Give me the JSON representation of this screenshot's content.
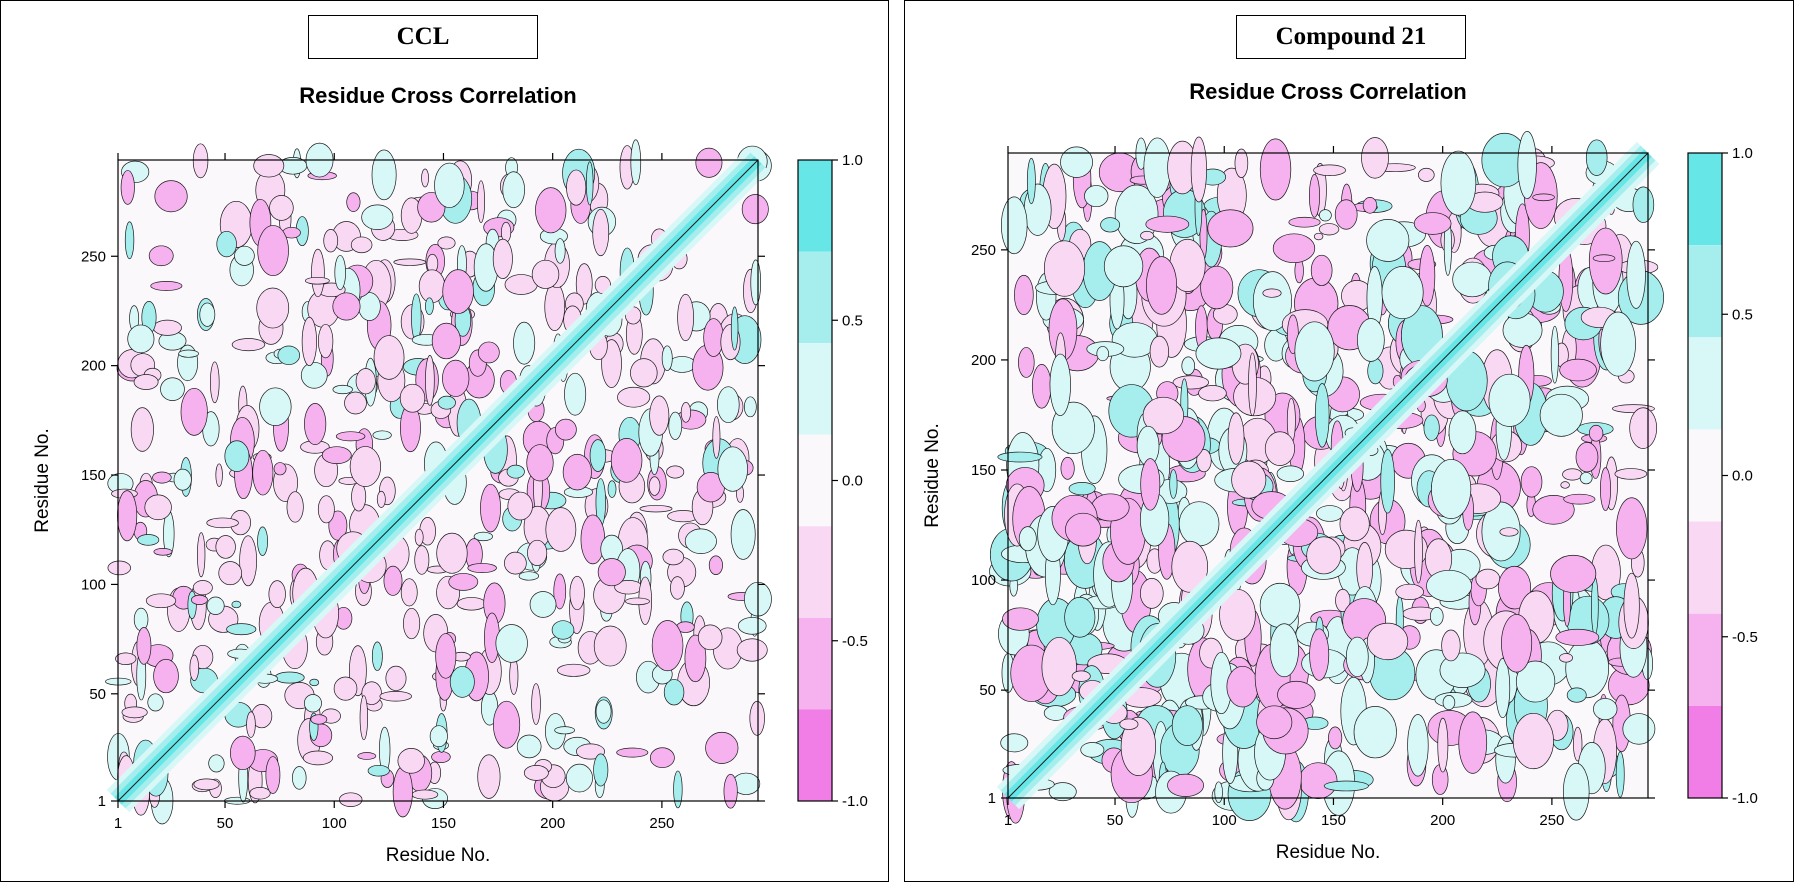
{
  "panels": [
    {
      "label": "CCL",
      "chart_data": {
        "type": "heatmap",
        "title": "Residue Cross Correlation",
        "xlabel": "Residue No.",
        "ylabel": "Residue No.",
        "xlim": [
          1,
          294
        ],
        "ylim": [
          1,
          294
        ],
        "xticks": [
          1,
          50,
          100,
          150,
          200,
          250
        ],
        "yticks": [
          1,
          50,
          100,
          150,
          200,
          250
        ],
        "diagonal_value": 1.0,
        "colorbar": {
          "ticks": [
            "1.0",
            "0.5",
            "0.0",
            "-0.5",
            "-1.0"
          ],
          "tick_values": [
            1.0,
            0.5,
            0.0,
            -0.5,
            -1.0
          ],
          "levels": [
            {
              "range": [
                0.75,
                1.0
              ],
              "color": "#66e6e6"
            },
            {
              "range": [
                0.5,
                0.75
              ],
              "color": "#a6eeee"
            },
            {
              "range": [
                0.25,
                0.5
              ],
              "color": "#d8f7f7"
            },
            {
              "range": [
                -0.25,
                0.25
              ],
              "color": "#fbf8fc"
            },
            {
              "range": [
                -0.5,
                -0.25
              ],
              "color": "#f9d8f4"
            },
            {
              "range": [
                -0.75,
                -0.5
              ],
              "color": "#f5b2ee"
            },
            {
              "range": [
                -1.0,
                -0.75
              ],
              "color": "#f07ee6"
            }
          ]
        }
      }
    },
    {
      "label": "Compound 21",
      "chart_data": {
        "type": "heatmap",
        "title": "Residue Cross Correlation",
        "xlabel": "Residue No.",
        "ylabel": "Residue No.",
        "xlim": [
          1,
          294
        ],
        "ylim": [
          1,
          294
        ],
        "xticks": [
          1,
          50,
          100,
          150,
          200,
          250
        ],
        "yticks": [
          1,
          50,
          100,
          150,
          200,
          250
        ],
        "diagonal_value": 1.0,
        "colorbar": {
          "ticks": [
            "1.0",
            "0.5",
            "0.0",
            "-0.5",
            "-1.0"
          ],
          "tick_values": [
            1.0,
            0.5,
            0.0,
            -0.5,
            -1.0
          ],
          "levels": [
            {
              "range": [
                0.75,
                1.0
              ],
              "color": "#66e6e6"
            },
            {
              "range": [
                0.5,
                0.75
              ],
              "color": "#a6eeee"
            },
            {
              "range": [
                0.25,
                0.5
              ],
              "color": "#d8f7f7"
            },
            {
              "range": [
                -0.25,
                0.25
              ],
              "color": "#fbf8fc"
            },
            {
              "range": [
                -0.5,
                -0.25
              ],
              "color": "#f9d8f4"
            },
            {
              "range": [
                -0.75,
                -0.5
              ],
              "color": "#f5b2ee"
            },
            {
              "range": [
                -1.0,
                -0.75
              ],
              "color": "#f07ee6"
            }
          ]
        }
      }
    }
  ]
}
